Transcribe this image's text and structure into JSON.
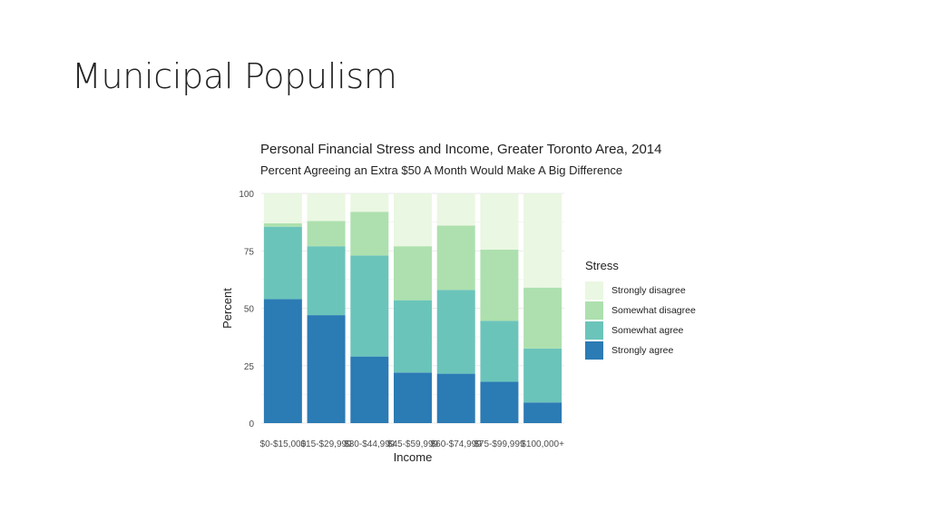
{
  "slide": {
    "title": "Municipal Populism"
  },
  "chart_data": {
    "type": "bar",
    "stacked": true,
    "title": "Personal Financial Stress and Income, Greater Toronto Area, 2014",
    "subtitle": "Percent Agreeing an Extra $50 A Month Would Make A Big Difference",
    "xlabel": "Income",
    "ylabel": "Percent",
    "ylim": [
      0,
      100
    ],
    "yticks": [
      0,
      25,
      50,
      75,
      100
    ],
    "grid": true,
    "legend_title": "Stress",
    "legend_position": "right",
    "categories": [
      "$0-$15,000",
      "$15-$29,999",
      "$30-$44,999",
      "$45-$59,999",
      "$60-$74,999",
      "$75-$99,999",
      "$100,000+"
    ],
    "series": [
      {
        "name": "Strongly agree",
        "color": "#2b7bb4",
        "values": [
          54,
          47,
          29,
          22,
          21.5,
          18,
          9
        ]
      },
      {
        "name": "Somewhat agree",
        "color": "#6bc4ba",
        "values": [
          31.5,
          30,
          44,
          31.5,
          36.5,
          26.5,
          23.5
        ]
      },
      {
        "name": "Somewhat disagree",
        "color": "#ade0ae",
        "values": [
          1.5,
          11,
          19,
          23.5,
          28,
          31,
          26.5
        ]
      },
      {
        "name": "Strongly disagree",
        "color": "#eaf7e2",
        "values": [
          13,
          12,
          8,
          23,
          14,
          24.5,
          41
        ]
      }
    ]
  }
}
